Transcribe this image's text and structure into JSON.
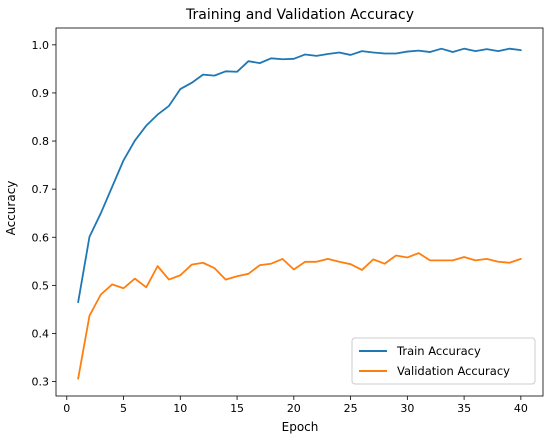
{
  "chart_data": {
    "type": "line",
    "title": "Training and Validation Accuracy",
    "xlabel": "Epoch",
    "ylabel": "Accuracy",
    "xlim": [
      -0.95,
      41.95
    ],
    "ylim": [
      0.27,
      1.035
    ],
    "xticks": [
      0,
      5,
      10,
      15,
      20,
      25,
      30,
      35,
      40
    ],
    "yticks": [
      0.3,
      0.4,
      0.5,
      0.6,
      0.7,
      0.8,
      0.9,
      1.0
    ],
    "ytick_labels": [
      "0.3",
      "0.4",
      "0.5",
      "0.6",
      "0.7",
      "0.8",
      "0.9",
      "1.0"
    ],
    "legend_position": "lower-right",
    "grid": false,
    "x": [
      1,
      2,
      3,
      4,
      5,
      6,
      7,
      8,
      9,
      10,
      11,
      12,
      13,
      14,
      15,
      16,
      17,
      18,
      19,
      20,
      21,
      22,
      23,
      24,
      25,
      26,
      27,
      28,
      29,
      30,
      31,
      32,
      33,
      34,
      35,
      36,
      37,
      38,
      39,
      40
    ],
    "series": [
      {
        "name": "Train Accuracy",
        "color": "#1f77b4",
        "values": [
          0.465,
          0.601,
          0.65,
          0.705,
          0.76,
          0.801,
          0.832,
          0.855,
          0.873,
          0.908,
          0.921,
          0.938,
          0.936,
          0.945,
          0.944,
          0.966,
          0.962,
          0.972,
          0.97,
          0.971,
          0.98,
          0.977,
          0.981,
          0.984,
          0.979,
          0.987,
          0.984,
          0.982,
          0.982,
          0.986,
          0.988,
          0.985,
          0.992,
          0.985,
          0.992,
          0.987,
          0.991,
          0.987,
          0.992,
          0.989
        ]
      },
      {
        "name": "Validation Accuracy",
        "color": "#ff7f0e",
        "values": [
          0.306,
          0.437,
          0.481,
          0.502,
          0.494,
          0.514,
          0.496,
          0.54,
          0.512,
          0.521,
          0.543,
          0.547,
          0.536,
          0.512,
          0.519,
          0.524,
          0.542,
          0.545,
          0.555,
          0.533,
          0.549,
          0.549,
          0.555,
          0.549,
          0.544,
          0.532,
          0.554,
          0.545,
          0.562,
          0.558,
          0.567,
          0.552,
          0.552,
          0.552,
          0.559,
          0.552,
          0.555,
          0.549,
          0.547,
          0.555
        ]
      }
    ]
  }
}
